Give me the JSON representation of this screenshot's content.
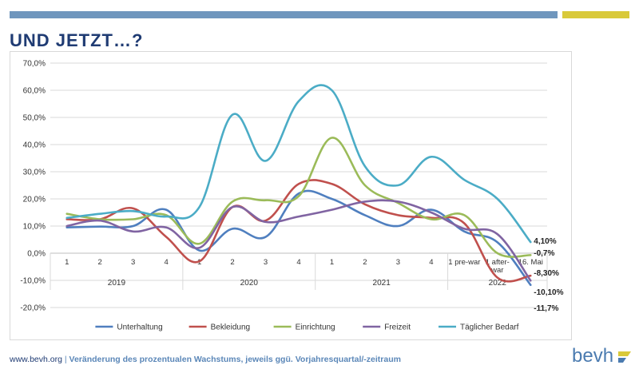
{
  "slide": {
    "title": "UND JETZT…?",
    "footer_url": "www.bevh.org",
    "footer_separator": "|",
    "footer_caption": "Veränderung des prozentualen Wachstums, jeweils ggü. Vorjahresquartal/-zeitraum",
    "logo_text": "bevh",
    "colors": {
      "top_bar": "#6f96bd",
      "top_bar_accent": "#d9c93a",
      "title": "#1f3b73"
    }
  },
  "chart_data": {
    "type": "line",
    "categories": [
      "1",
      "2",
      "3",
      "4",
      "1",
      "2",
      "3",
      "4",
      "1",
      "2",
      "3",
      "4",
      "1 pre-war",
      "1 after-war",
      "16. Mai"
    ],
    "groups": [
      {
        "label": "2019",
        "from": 0,
        "to": 3
      },
      {
        "label": "2020",
        "from": 4,
        "to": 7
      },
      {
        "label": "2021",
        "from": 8,
        "to": 11
      },
      {
        "label": "2022",
        "from": 12,
        "to": 14
      }
    ],
    "ylim": [
      -20,
      70
    ],
    "yticks": [
      -20,
      -10,
      0,
      10,
      20,
      30,
      40,
      50,
      60,
      70
    ],
    "ytick_labels": [
      "-20,0%",
      "-10,0%",
      "0,0%",
      "10,0%",
      "20,0%",
      "30,0%",
      "40,0%",
      "50,0%",
      "60,0%",
      "70,0%"
    ],
    "grid": true,
    "legend": "bottom",
    "series": [
      {
        "name": "Unterhaltung",
        "color": "#4f7fbf",
        "values": [
          9.5,
          9.8,
          10,
          16,
          1,
          9,
          6,
          22,
          20,
          14,
          10,
          16,
          8,
          4,
          -11.7
        ]
      },
      {
        "name": "Bekleidung",
        "color": "#c0504d",
        "values": [
          12.5,
          12.5,
          16.5,
          6,
          -3,
          17,
          12,
          25.5,
          25.5,
          18,
          14,
          13,
          11,
          -9,
          -8.3
        ]
      },
      {
        "name": "Einrichtung",
        "color": "#9bbb59",
        "values": [
          14.5,
          12.5,
          12.5,
          14,
          3.5,
          19,
          19.5,
          21,
          42.5,
          25,
          18.5,
          12.5,
          14,
          0,
          -0.7
        ]
      },
      {
        "name": "Freizeit",
        "color": "#8064a2",
        "values": [
          10,
          12,
          8,
          9.5,
          2,
          17,
          11.5,
          13.5,
          16,
          19,
          19,
          15,
          9,
          7,
          -10.1
        ]
      },
      {
        "name": "Täglicher Bedarf",
        "color": "#4bacc6",
        "values": [
          13,
          14.5,
          15.5,
          13.5,
          17,
          51,
          34,
          56,
          60,
          32,
          25,
          35.5,
          27,
          20,
          4.1
        ]
      }
    ],
    "end_labels": [
      {
        "text": "4,10%",
        "series": "Täglicher Bedarf"
      },
      {
        "text": "-0,7%",
        "series": "Einrichtung"
      },
      {
        "text": "-8,30%",
        "series": "Bekleidung"
      },
      {
        "text": "-10,10%",
        "series": "Freizeit"
      },
      {
        "text": "-11,7%",
        "series": "Unterhaltung"
      }
    ]
  }
}
